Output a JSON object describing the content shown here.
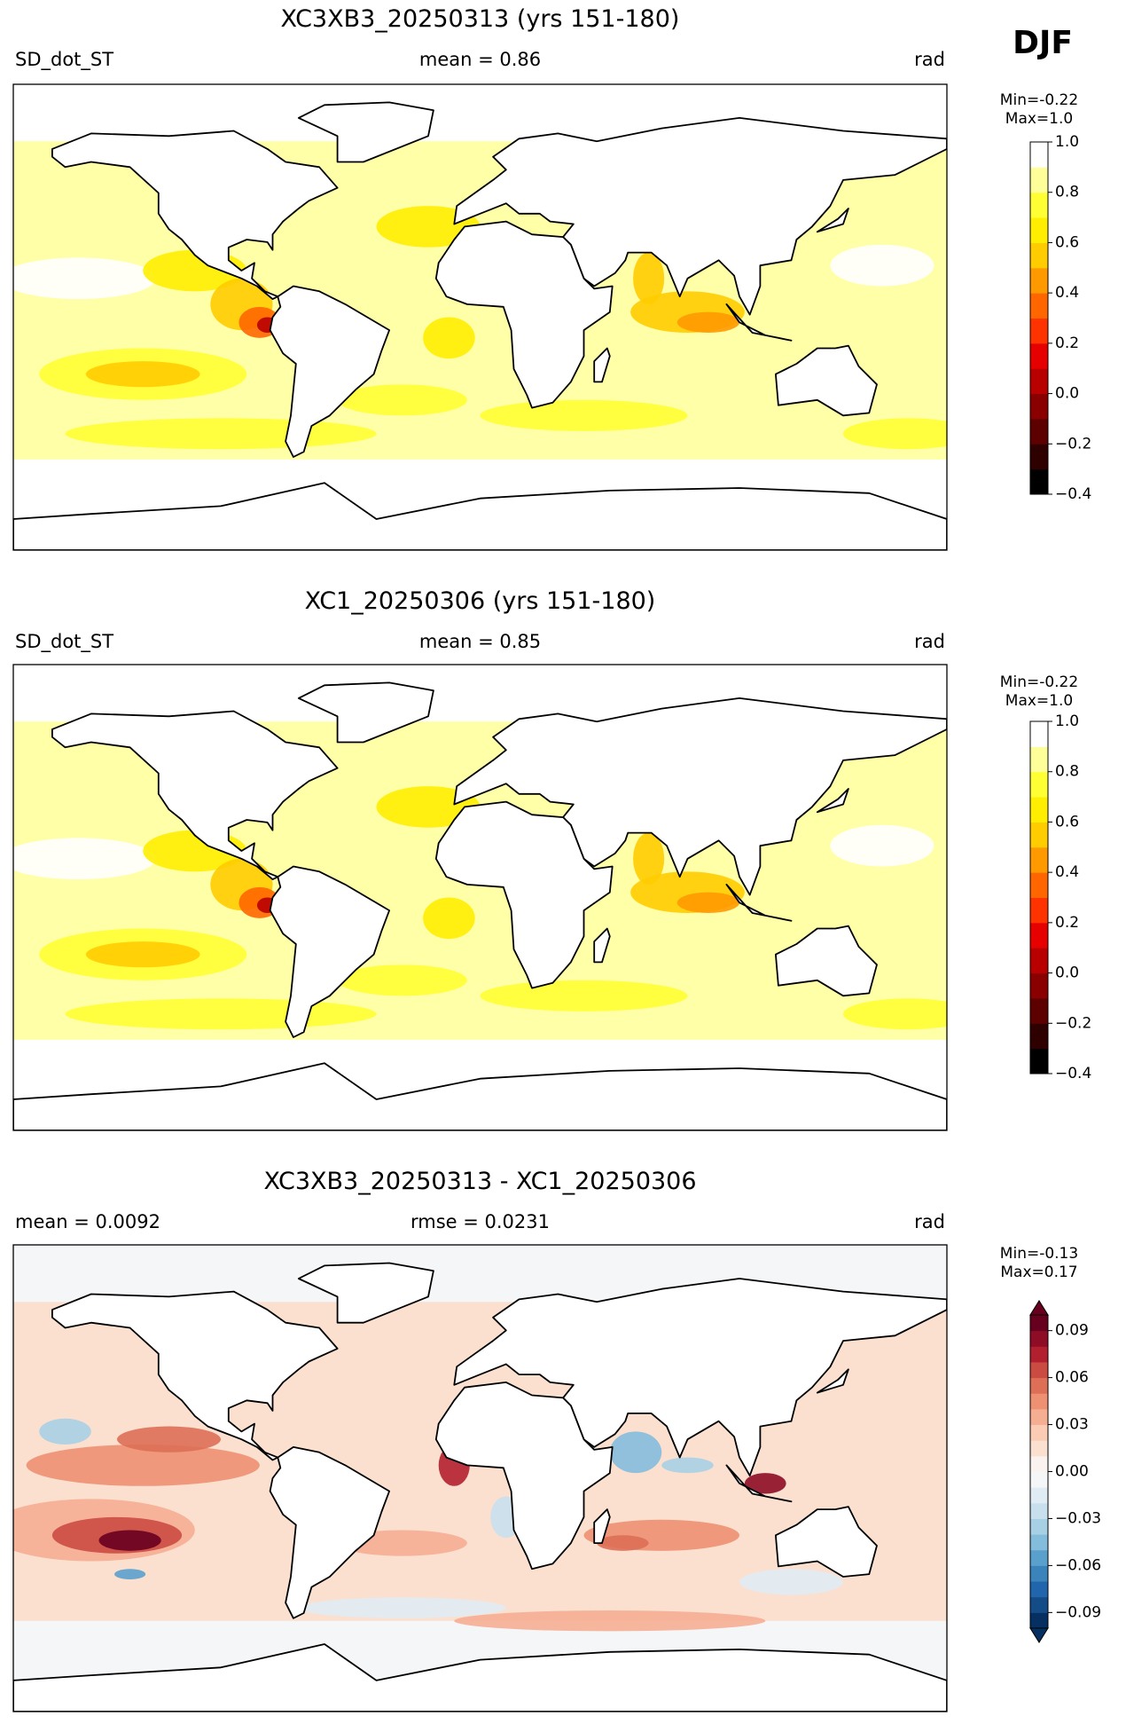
{
  "header": {
    "season": "DJF"
  },
  "panels": [
    {
      "title": "XC3XB3_20250313 (yrs 151-180)",
      "left": "SD_dot_ST",
      "center": "mean = 0.86",
      "right": "rad",
      "range_label": [
        "Min=-0.22",
        "Max=1.0"
      ],
      "colorbar": {
        "lim": [
          -0.4,
          1.0
        ],
        "ticks": [
          {
            "value": -0.4,
            "label": "−0.4"
          },
          {
            "value": -0.2,
            "label": "−0.2"
          },
          {
            "value": 0.0,
            "label": "0.0"
          },
          0.2,
          0.4,
          0.6,
          0.8,
          {
            "value": 1.0,
            "label": "1.0"
          }
        ],
        "colors": [
          "#000000",
          "#2e0000",
          "#5c0000",
          "#8a0000",
          "#b80000",
          "#e60000",
          "#ff3300",
          "#ff6600",
          "#ff9900",
          "#ffcc00",
          "#ffee00",
          "#ffff33",
          "#ffff99",
          "#ffffff"
        ]
      }
    },
    {
      "title": "XC1_20250306 (yrs 151-180)",
      "left": "SD_dot_ST",
      "center": "mean = 0.85",
      "right": "rad",
      "range_label": [
        "Min=-0.22",
        "Max=1.0"
      ],
      "colorbar": {
        "lim": [
          -0.4,
          1.0
        ],
        "ticks": [
          {
            "value": -0.4,
            "label": "−0.4"
          },
          {
            "value": -0.2,
            "label": "−0.2"
          },
          {
            "value": 0.0,
            "label": "0.0"
          },
          0.2,
          0.4,
          0.6,
          0.8,
          {
            "value": 1.0,
            "label": "1.0"
          }
        ],
        "colors": [
          "#000000",
          "#2e0000",
          "#5c0000",
          "#8a0000",
          "#b80000",
          "#e60000",
          "#ff3300",
          "#ff6600",
          "#ff9900",
          "#ffcc00",
          "#ffee00",
          "#ffff33",
          "#ffff99",
          "#ffffff"
        ]
      }
    },
    {
      "title": "XC3XB3_20250313 - XC1_20250306",
      "left": "mean = 0.0092",
      "center": "rmse = 0.0231",
      "right": "rad",
      "range_label": [
        "Min=-0.13",
        "Max=0.17"
      ],
      "colorbar": {
        "lim": [
          -0.1,
          0.1
        ],
        "extend": "both",
        "ticks": [
          {
            "value": -0.09,
            "label": "−0.09"
          },
          {
            "value": -0.06,
            "label": "−0.06"
          },
          {
            "value": -0.03,
            "label": "−0.03"
          },
          {
            "value": 0.0,
            "label": "0.00"
          },
          0.03,
          0.06,
          0.09
        ],
        "colors": [
          "#053061",
          "#134c87",
          "#2166ac",
          "#3a84bb",
          "#5aa0cc",
          "#84bcdb",
          "#a8d0e4",
          "#c8e0ee",
          "#e0ecf4",
          "#f4f6f8",
          "#faf2ee",
          "#fbe0d0",
          "#fbcbb4",
          "#f6ae92",
          "#ee9072",
          "#dd6f56",
          "#cb4a42",
          "#b2202f",
          "#8e0c25",
          "#67001f"
        ],
        "extend_colors": [
          "#053061",
          "#67001f"
        ]
      }
    }
  ]
}
